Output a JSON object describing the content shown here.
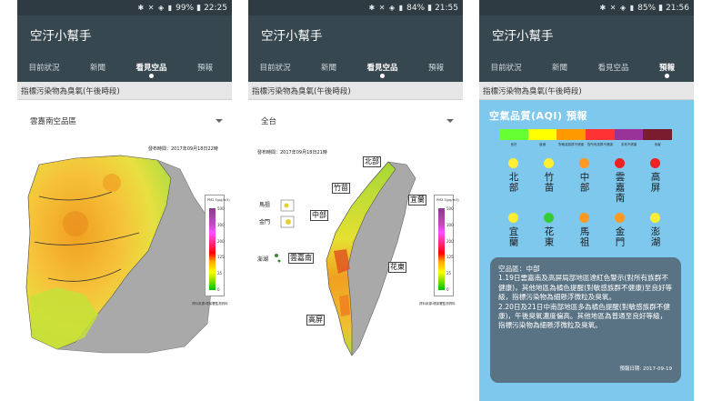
{
  "app_title": "空汙小幫手",
  "tabs": [
    "目前狀況",
    "新聞",
    "看見空品",
    "預報"
  ],
  "pollutant_label": "指標污染物為臭氧(午後時段)",
  "screens": [
    {
      "status": "99%",
      "time": "22:25",
      "active_tab": 2,
      "dropdown": "雲嘉南空品區",
      "publish": "發布時間：2017年09月18日22時",
      "legend_ticks": [
        "500",
        "300",
        "200",
        "125",
        "25",
        "0"
      ],
      "legend_head": "PM2.5(μg/m3)",
      "legend_note": "資料來源:環保署監測資料"
    },
    {
      "status": "84%",
      "time": "21:55",
      "active_tab": 2,
      "dropdown": "全台",
      "publish": "發布時間：2017年09月18日21時",
      "legend_ticks": [
        "500",
        "300",
        "200",
        "125",
        "25",
        "0"
      ],
      "legend_head": "PM2.5(μg/m3)",
      "legend_note": "資料來源:環保署監測資料",
      "region_labels": [
        "北部",
        "竹苗",
        "宜蘭",
        "中部",
        "雲嘉南",
        "花東",
        "高屏",
        "馬祖",
        "金門",
        "澎湖"
      ]
    },
    {
      "status": "85%",
      "time": "21:56",
      "active_tab": 3,
      "aqi_title": "空氣品質(AQI) 預報",
      "scale_colors": [
        "#66ff33",
        "#ffff00",
        "#ff9900",
        "#ff3333",
        "#993399",
        "#7a1c2e"
      ],
      "scale_labels": [
        "良好",
        "普通",
        "對敏感族群不健康",
        "對所有族群不健康",
        "非常不健康",
        "危害"
      ],
      "regions_row1": [
        {
          "name": "北部",
          "color": "#ffee33"
        },
        {
          "name": "竹苗",
          "color": "#ffee33"
        },
        {
          "name": "中部",
          "color": "#ff9922"
        },
        {
          "name": "雲嘉南",
          "color": "#ee2222"
        },
        {
          "name": "高屏",
          "color": "#ee2222"
        }
      ],
      "regions_row2": [
        {
          "name": "宜蘭",
          "color": "#ffee33"
        },
        {
          "name": "花東",
          "color": "#33cc33"
        },
        {
          "name": "馬祖",
          "color": "#ff9922"
        },
        {
          "name": "金門",
          "color": "#ff9922"
        },
        {
          "name": "澎湖",
          "color": "#ffee33"
        }
      ],
      "note_region": "空品區：中部",
      "note_p1": "1.19日雲嘉南及高屏局部地區達紅色警示(對所有族群不健康)，其他地區為橘色提醒(對敏感族群不健康)至良好等級，指標污染物為細懸浮微粒及臭氧。",
      "note_p2": "2.20日及21日中南部地區多為橘色提醒(對敏感族群不健康)，午後臭氧濃度偏高。其他地區為普通至良好等級，指標污染物為細懸浮微粒及臭氧。",
      "note_date": "預報日期: 2017-09-19"
    }
  ],
  "status_icons": "✱ ✕ ◈ ▮"
}
